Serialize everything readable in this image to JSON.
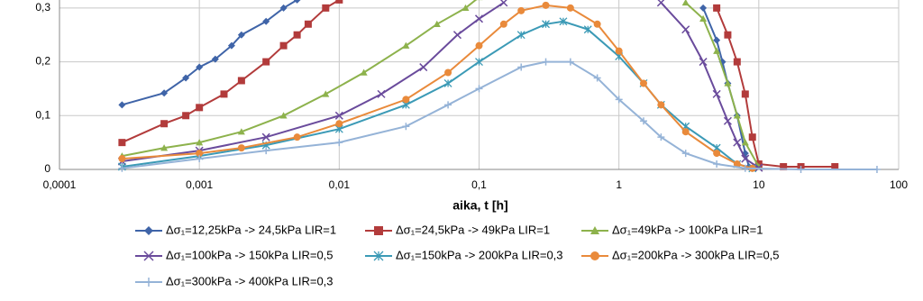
{
  "chart_data": {
    "type": "line",
    "x_label": "aika, t [h]",
    "xscale": "log",
    "grid": true,
    "legend": "bottom",
    "xlim": [
      0.0001,
      100
    ],
    "xticks": [
      {
        "value": 0.0001,
        "label": "0,0001"
      },
      {
        "value": 0.001,
        "label": "0,001"
      },
      {
        "value": 0.01,
        "label": "0,01"
      },
      {
        "value": 0.1,
        "label": "0,1"
      },
      1,
      10,
      100
    ],
    "ylim": [
      0,
      0.35
    ],
    "yticks": [
      0,
      {
        "value": 0.1,
        "label": "0,1"
      },
      {
        "value": 0.2,
        "label": "0,2"
      },
      {
        "value": 0.3,
        "label": "0,3"
      }
    ],
    "series": [
      {
        "name": "Δσ₁=12,25kPa -> 24,5kPa LIR=1",
        "color": "#3f64a8",
        "marker": "diamond",
        "x": [
          0.00028,
          0.00056,
          0.0008,
          0.001,
          0.0013,
          0.0017,
          0.002,
          0.003,
          0.004,
          0.005,
          null,
          4,
          5,
          5.5,
          6,
          7,
          8,
          8.5
        ],
        "values": [
          0.12,
          0.142,
          0.17,
          0.19,
          0.205,
          0.23,
          0.25,
          0.275,
          0.3,
          0.315,
          null,
          0.3,
          0.24,
          0.2,
          0.16,
          0.1,
          0.03,
          0.005
        ]
      },
      {
        "name": "Δσ₁=24,5kPa -> 49kPa LIR=1",
        "color": "#b23b3b",
        "marker": "square",
        "x": [
          0.00028,
          0.00056,
          0.0008,
          0.001,
          0.0015,
          0.002,
          0.003,
          0.004,
          0.005,
          0.006,
          0.008,
          0.01,
          null,
          5,
          6,
          7,
          8,
          9,
          10,
          15,
          20,
          35
        ],
        "values": [
          0.05,
          0.085,
          0.1,
          0.115,
          0.14,
          0.165,
          0.2,
          0.23,
          0.25,
          0.27,
          0.3,
          0.315,
          null,
          0.3,
          0.25,
          0.2,
          0.14,
          0.06,
          0.01,
          0.005,
          0.005,
          0.005
        ]
      },
      {
        "name": "Δσ₁=49kPa -> 100kPa LIR=1",
        "color": "#8db24c",
        "marker": "triangle",
        "x": [
          0.00028,
          0.00056,
          0.001,
          0.002,
          0.004,
          0.008,
          0.015,
          0.03,
          0.05,
          0.08,
          0.1,
          null,
          3,
          4,
          5,
          6,
          7,
          8,
          10
        ],
        "values": [
          0.025,
          0.04,
          0.05,
          0.07,
          0.1,
          0.14,
          0.18,
          0.23,
          0.27,
          0.3,
          0.32,
          null,
          0.31,
          0.28,
          0.22,
          0.16,
          0.1,
          0.05,
          0.005
        ]
      },
      {
        "name": "Δσ₁=100kPa -> 150kPa LIR=0,5",
        "color": "#6a4b9c",
        "marker": "x",
        "x": [
          0.00028,
          0.001,
          0.003,
          0.01,
          0.02,
          0.04,
          0.07,
          0.1,
          0.15,
          null,
          2,
          3,
          4,
          5,
          6,
          7,
          8,
          10
        ],
        "values": [
          0.015,
          0.035,
          0.06,
          0.1,
          0.14,
          0.19,
          0.25,
          0.28,
          0.31,
          null,
          0.31,
          0.26,
          0.2,
          0.14,
          0.09,
          0.05,
          0.02,
          0.003
        ]
      },
      {
        "name": "Δσ₁=150kPa -> 200kPa LIR=0,3",
        "color": "#3b9ab6",
        "marker": "star",
        "x": [
          0.00028,
          0.001,
          0.003,
          0.01,
          0.03,
          0.06,
          0.1,
          0.2,
          0.3,
          0.4,
          0.6,
          1,
          1.5,
          2,
          3,
          5,
          7,
          9
        ],
        "values": [
          0.005,
          0.025,
          0.045,
          0.075,
          0.12,
          0.16,
          0.2,
          0.25,
          0.27,
          0.275,
          0.26,
          0.21,
          0.16,
          0.12,
          0.08,
          0.04,
          0.01,
          0.002
        ]
      },
      {
        "name": "Δσ₁=200kPa -> 300kPa LIR=0,5",
        "color": "#e98a3b",
        "marker": "circle",
        "x": [
          0.00028,
          0.001,
          0.002,
          0.005,
          0.01,
          0.03,
          0.06,
          0.1,
          0.15,
          0.2,
          0.3,
          0.45,
          0.7,
          1,
          1.5,
          2,
          3,
          5,
          7,
          9
        ],
        "values": [
          0.02,
          0.03,
          0.04,
          0.06,
          0.085,
          0.13,
          0.18,
          0.23,
          0.27,
          0.295,
          0.305,
          0.3,
          0.27,
          0.22,
          0.16,
          0.12,
          0.07,
          0.03,
          0.01,
          0.002
        ]
      },
      {
        "name": "Δσ₁=300kPa -> 400kPa LIR=0,3",
        "color": "#95b3d7",
        "marker": "plus",
        "x": [
          0.00028,
          0.001,
          0.003,
          0.01,
          0.03,
          0.06,
          0.1,
          0.2,
          0.3,
          0.45,
          0.7,
          1,
          1.5,
          2,
          3,
          5,
          8,
          20,
          70
        ],
        "values": [
          0.002,
          0.02,
          0.035,
          0.05,
          0.08,
          0.12,
          0.15,
          0.19,
          0.2,
          0.2,
          0.17,
          0.13,
          0.09,
          0.06,
          0.03,
          0.01,
          0.002,
          0,
          0
        ]
      }
    ]
  }
}
